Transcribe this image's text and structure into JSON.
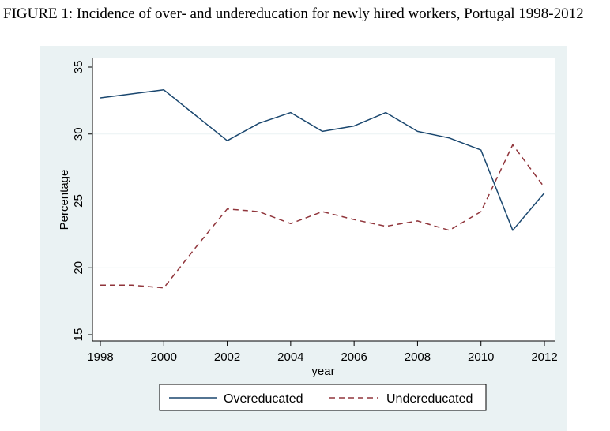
{
  "figure": {
    "caption": "FIGURE 1:  Incidence of over- and undereducation for newly hired workers, Portugal 1998-2012"
  },
  "chart_data": {
    "type": "line",
    "title": "",
    "xlabel": "year",
    "ylabel": "Percentage",
    "x": [
      1998,
      1999,
      2000,
      2001,
      2002,
      2003,
      2004,
      2005,
      2006,
      2007,
      2008,
      2009,
      2010,
      2011,
      2012
    ],
    "xticks": [
      "1998",
      "2000",
      "2002",
      "2004",
      "2006",
      "2008",
      "2010",
      "2012"
    ],
    "yticks": [
      "15",
      "20",
      "25",
      "30",
      "35"
    ],
    "xlim": [
      1998,
      2012
    ],
    "ylim": [
      15,
      35
    ],
    "grid": "horizontal",
    "legend_position": "bottom",
    "series": [
      {
        "name": "Overeducated",
        "color": "#1a476f",
        "style": "solid",
        "values": [
          32.7,
          33.0,
          33.3,
          31.4,
          29.5,
          30.8,
          31.6,
          30.2,
          30.6,
          31.6,
          30.2,
          29.7,
          28.8,
          22.8,
          25.6
        ]
      },
      {
        "name": "Undereducated",
        "color": "#90353b",
        "style": "dashed",
        "values": [
          18.7,
          18.7,
          18.5,
          21.5,
          24.4,
          24.2,
          23.3,
          24.2,
          23.6,
          23.1,
          23.5,
          22.8,
          24.2,
          29.2,
          26.0
        ]
      }
    ]
  }
}
